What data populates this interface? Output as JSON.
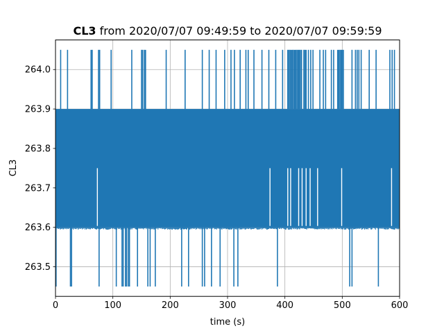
{
  "chart_data": {
    "type": "line",
    "title_bold": "CL3",
    "title_rest": " from 2020/07/07 09:49:59 to 2020/07/07 09:59:59",
    "xlabel": "time (s)",
    "ylabel": "CL3",
    "xlim": [
      0,
      600
    ],
    "ylim": [
      263.425,
      264.075
    ],
    "x_ticks": [
      0,
      100,
      200,
      300,
      400,
      500,
      600
    ],
    "x_tick_labels": [
      "0",
      "100",
      "200",
      "300",
      "400",
      "500",
      "600"
    ],
    "y_ticks": [
      263.5,
      263.6,
      263.7,
      263.8,
      263.9,
      264.0
    ],
    "y_tick_labels": [
      "263.5",
      "263.6",
      "263.7",
      "263.8",
      "263.9",
      "264.0"
    ],
    "grid": true,
    "series_color": "#1f77b4",
    "series": [
      {
        "band_low": 263.6,
        "band_high": 263.9,
        "spike_high": 264.05,
        "spike_low": 263.45,
        "high_spike_times": [
          9,
          21,
          62,
          64,
          75,
          77,
          97,
          133,
          150,
          152,
          155,
          157,
          193,
          226,
          256,
          268,
          280,
          295,
          306,
          312,
          322,
          332,
          336,
          346,
          360,
          372,
          384,
          396,
          405,
          407,
          409,
          411,
          413,
          415,
          417,
          419,
          421,
          423,
          425,
          427,
          429,
          433,
          435,
          437,
          441,
          445,
          449,
          461,
          467,
          471,
          481,
          485,
          492,
          494,
          496,
          498,
          500,
          502,
          517,
          523,
          526,
          529,
          533,
          547,
          559,
          583,
          587,
          591
        ],
        "low_spike_times": [
          1,
          26,
          28,
          76,
          106,
          116,
          118,
          122,
          124,
          127,
          129,
          143,
          161,
          165,
          174,
          220,
          232,
          256,
          260,
          272,
          287,
          311,
          318,
          387,
          513,
          517,
          563
        ],
        "dip_times": [
          73,
          374,
          405,
          410,
          424,
          430,
          437,
          444,
          457,
          499,
          586
        ],
        "dip_level": 263.75
      }
    ]
  }
}
